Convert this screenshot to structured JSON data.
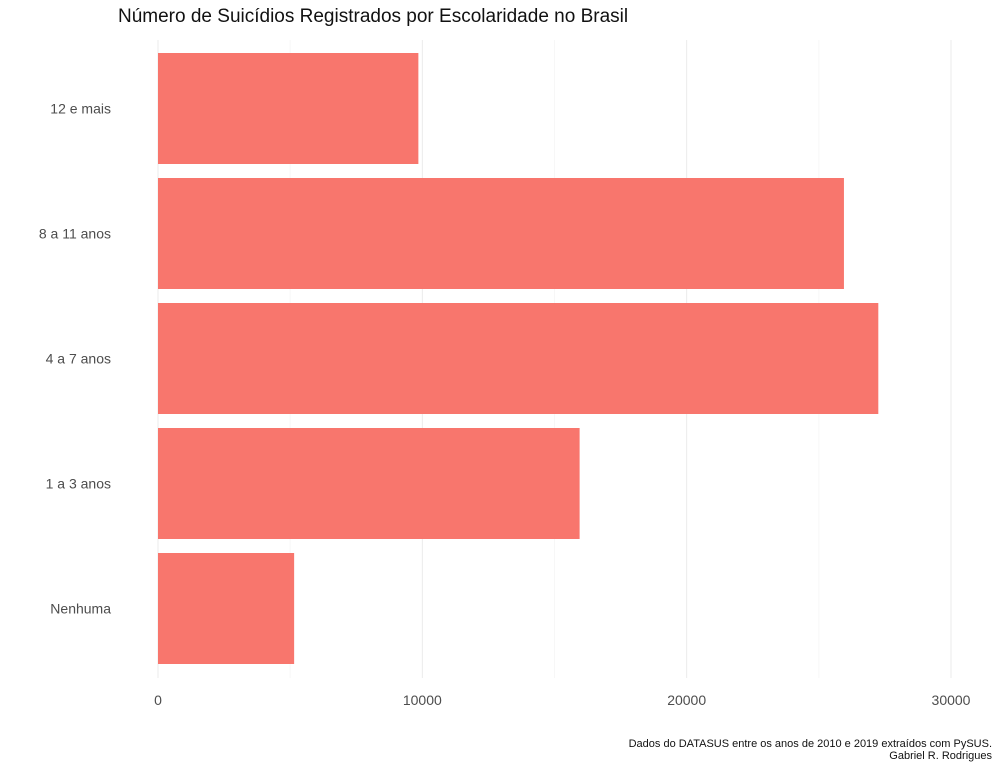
{
  "chart_data": {
    "type": "bar",
    "orientation": "horizontal",
    "title": "Número de Suicídios Registrados por Escolaridade no Brasil",
    "categories": [
      "Nenhuma",
      "1 a 3 anos",
      "4 a 7 anos",
      "8 a 11 anos",
      "12 e mais"
    ],
    "values": [
      5150,
      15950,
      27250,
      25950,
      9850
    ],
    "xlabel": "",
    "ylabel": "",
    "xlim": [
      0,
      30000
    ],
    "xticks": [
      0,
      10000,
      20000,
      30000
    ],
    "xtick_labels": [
      "0",
      "10000",
      "20000",
      "30000"
    ],
    "grid": true,
    "bar_color": "#F8766D",
    "grid_color": "#ebebeb",
    "caption": [
      "Dados do DATASUS entre os anos de 2010 e 2019 extraídos com PySUS.",
      "Gabriel R. Rodrigues"
    ]
  }
}
